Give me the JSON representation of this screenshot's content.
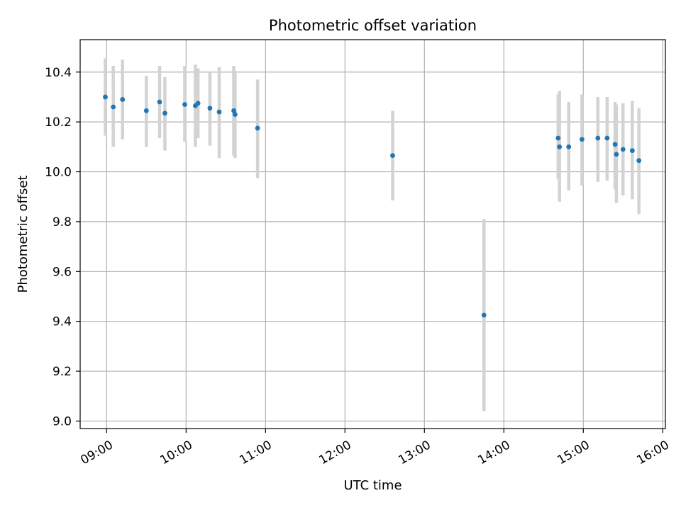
{
  "chart_data": {
    "type": "scatter",
    "title": "Photometric offset variation",
    "xlabel": "UTC time",
    "ylabel": "Photometric offset",
    "xlim": [
      "08:40",
      "16:02"
    ],
    "ylim": [
      8.97,
      10.53
    ],
    "x_ticks": [
      "09:00",
      "10:00",
      "11:00",
      "12:00",
      "13:00",
      "14:00",
      "15:00",
      "16:00"
    ],
    "y_ticks": [
      "9.0",
      "9.2",
      "9.4",
      "9.6",
      "9.8",
      "10.0",
      "10.2",
      "10.4"
    ],
    "grid": true,
    "colors": {
      "point": "#1f77b4",
      "errorbar": "#d3d3d3",
      "grid": "#b0b0b0"
    },
    "series": [
      {
        "points": [
          {
            "x": "08:59",
            "y": 10.3,
            "err_low": 10.145,
            "err_high": 10.455
          },
          {
            "x": "09:05",
            "y": 10.26,
            "err_low": 10.1,
            "err_high": 10.425
          },
          {
            "x": "09:12",
            "y": 10.29,
            "err_low": 10.13,
            "err_high": 10.45
          },
          {
            "x": "09:30",
            "y": 10.245,
            "err_low": 10.1,
            "err_high": 10.385
          },
          {
            "x": "09:40",
            "y": 10.28,
            "err_low": 10.135,
            "err_high": 10.425
          },
          {
            "x": "09:44",
            "y": 10.235,
            "err_low": 10.085,
            "err_high": 10.38
          },
          {
            "x": "09:59",
            "y": 10.27,
            "err_low": 10.12,
            "err_high": 10.425
          },
          {
            "x": "10:07",
            "y": 10.265,
            "err_low": 10.1,
            "err_high": 10.43
          },
          {
            "x": "10:09",
            "y": 10.275,
            "err_low": 10.135,
            "err_high": 10.415
          },
          {
            "x": "10:18",
            "y": 10.255,
            "err_low": 10.105,
            "err_high": 10.4
          },
          {
            "x": "10:25",
            "y": 10.24,
            "err_low": 10.055,
            "err_high": 10.42
          },
          {
            "x": "10:36",
            "y": 10.245,
            "err_low": 10.065,
            "err_high": 10.425
          },
          {
            "x": "10:37",
            "y": 10.23,
            "err_low": 10.055,
            "err_high": 10.405
          },
          {
            "x": "10:54",
            "y": 10.175,
            "err_low": 9.975,
            "err_high": 10.37
          },
          {
            "x": "12:36",
            "y": 10.065,
            "err_low": 9.885,
            "err_high": 10.245
          },
          {
            "x": "13:45",
            "y": 9.425,
            "err_low": 9.04,
            "err_high": 9.81
          },
          {
            "x": "14:41",
            "y": 10.135,
            "err_low": 9.97,
            "err_high": 10.31
          },
          {
            "x": "14:42",
            "y": 10.1,
            "err_low": 9.88,
            "err_high": 10.325
          },
          {
            "x": "14:49",
            "y": 10.1,
            "err_low": 9.925,
            "err_high": 10.28
          },
          {
            "x": "14:59",
            "y": 10.13,
            "err_low": 9.945,
            "err_high": 10.31
          },
          {
            "x": "15:11",
            "y": 10.135,
            "err_low": 9.96,
            "err_high": 10.3
          },
          {
            "x": "15:18",
            "y": 10.135,
            "err_low": 9.965,
            "err_high": 10.3
          },
          {
            "x": "15:24",
            "y": 10.11,
            "err_low": 9.93,
            "err_high": 10.28
          },
          {
            "x": "15:25",
            "y": 10.07,
            "err_low": 9.875,
            "err_high": 10.27
          },
          {
            "x": "15:30",
            "y": 10.09,
            "err_low": 9.905,
            "err_high": 10.275
          },
          {
            "x": "15:37",
            "y": 10.085,
            "err_low": 9.89,
            "err_high": 10.285
          },
          {
            "x": "15:42",
            "y": 10.045,
            "err_low": 9.83,
            "err_high": 10.255
          }
        ]
      }
    ]
  }
}
